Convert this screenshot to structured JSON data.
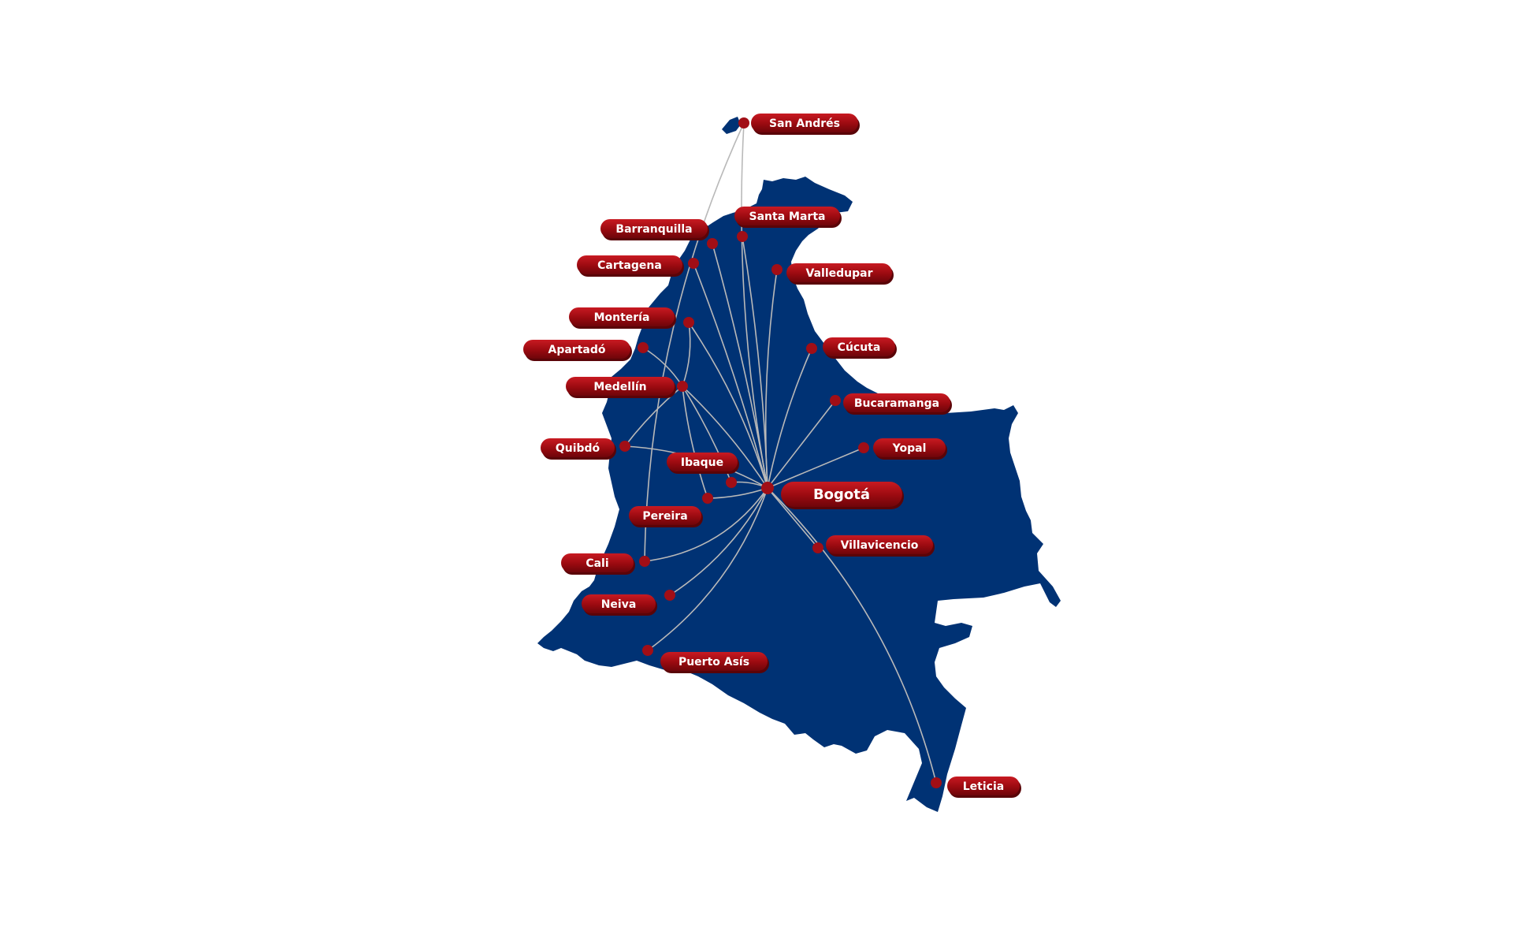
{
  "map": {
    "colors": {
      "country": "#003274",
      "route": "#b9b9b9",
      "dot": "#a10e16",
      "label": "#9a0a10",
      "label_highlight": "#c81a22",
      "label_text": "#ffffff"
    },
    "hub": "Bogotá",
    "cities": [
      {
        "id": "san-andres",
        "name": "San Andrés"
      },
      {
        "id": "santa-marta",
        "name": "Santa Marta"
      },
      {
        "id": "barranquilla",
        "name": "Barranquilla"
      },
      {
        "id": "cartagena",
        "name": "Cartagena"
      },
      {
        "id": "valledupar",
        "name": "Valledupar"
      },
      {
        "id": "monteria",
        "name": "Montería"
      },
      {
        "id": "apartado",
        "name": "Apartadó"
      },
      {
        "id": "cucuta",
        "name": "Cúcuta"
      },
      {
        "id": "medellin",
        "name": "Medellín"
      },
      {
        "id": "bucaramanga",
        "name": "Bucaramanga"
      },
      {
        "id": "quibdo",
        "name": "Quibdó"
      },
      {
        "id": "yopal",
        "name": "Yopal"
      },
      {
        "id": "ibaque",
        "name": "Ibaque"
      },
      {
        "id": "bogota",
        "name": "Bogotá"
      },
      {
        "id": "pereira",
        "name": "Pereira"
      },
      {
        "id": "villavicencio",
        "name": "Villavicencio"
      },
      {
        "id": "cali",
        "name": "Cali"
      },
      {
        "id": "neiva",
        "name": "Neiva"
      },
      {
        "id": "puerto-asis",
        "name": "Puerto Asís"
      },
      {
        "id": "leticia",
        "name": "Leticia"
      }
    ],
    "routes": [
      {
        "from": "Bogotá",
        "to": "San Andrés"
      },
      {
        "from": "Bogotá",
        "to": "Santa Marta"
      },
      {
        "from": "Bogotá",
        "to": "Barranquilla"
      },
      {
        "from": "Bogotá",
        "to": "Cartagena"
      },
      {
        "from": "Bogotá",
        "to": "Valledupar"
      },
      {
        "from": "Bogotá",
        "to": "Montería"
      },
      {
        "from": "Bogotá",
        "to": "Cúcuta"
      },
      {
        "from": "Bogotá",
        "to": "Medellín"
      },
      {
        "from": "Bogotá",
        "to": "Bucaramanga"
      },
      {
        "from": "Bogotá",
        "to": "Quibdó"
      },
      {
        "from": "Bogotá",
        "to": "Yopal"
      },
      {
        "from": "Bogotá",
        "to": "Ibaque"
      },
      {
        "from": "Bogotá",
        "to": "Pereira"
      },
      {
        "from": "Bogotá",
        "to": "Villavicencio"
      },
      {
        "from": "Bogotá",
        "to": "Cali"
      },
      {
        "from": "Bogotá",
        "to": "Neiva"
      },
      {
        "from": "Bogotá",
        "to": "Puerto Asís"
      },
      {
        "from": "Bogotá",
        "to": "Leticia"
      },
      {
        "from": "Medellín",
        "to": "Apartadó"
      },
      {
        "from": "Medellín",
        "to": "Montería"
      },
      {
        "from": "Medellín",
        "to": "Quibdó"
      },
      {
        "from": "Medellín",
        "to": "Pereira"
      },
      {
        "from": "Medellín",
        "to": "Ibaque"
      },
      {
        "from": "San Andrés",
        "to": "Cali"
      }
    ]
  }
}
